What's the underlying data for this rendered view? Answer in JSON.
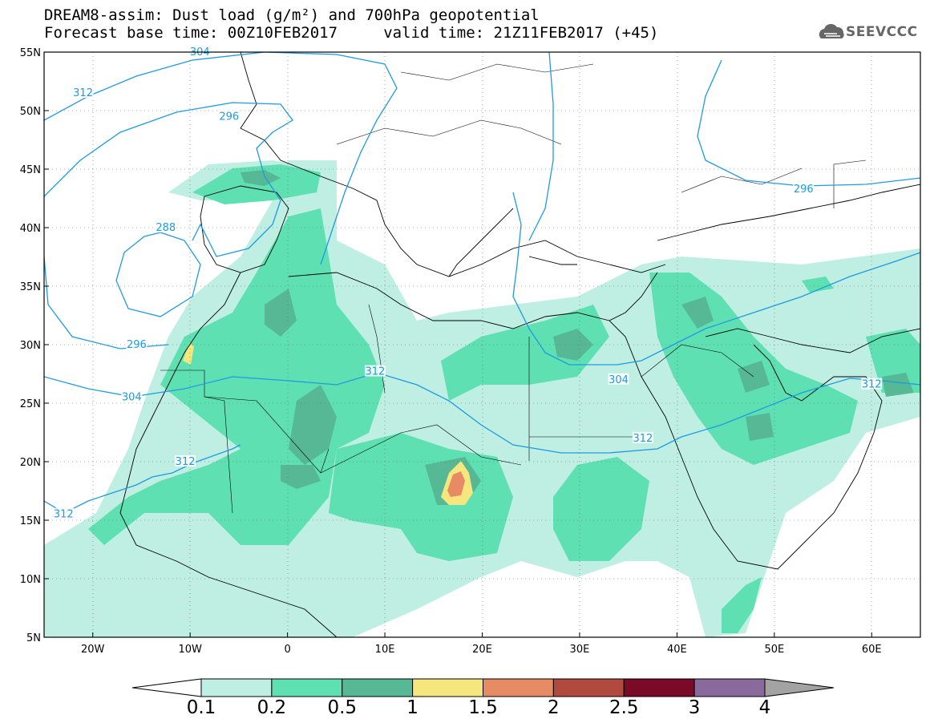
{
  "header": {
    "title_line1": "DREAM8-assim: Dust load (g/m²) and 700hPa geopotential",
    "title_line2": "Forecast base time: 00Z10FEB2017     valid time: 21Z11FEB2017 (+45)",
    "logo_text": "SEEVCCC"
  },
  "axes": {
    "lat_labels": [
      "55N",
      "50N",
      "45N",
      "40N",
      "35N",
      "30N",
      "25N",
      "20N",
      "15N",
      "10N",
      "5N"
    ],
    "lon_labels": [
      "20W",
      "10W",
      "0",
      "10E",
      "20E",
      "30E",
      "40E",
      "50E",
      "60E"
    ],
    "lat_range": [
      5,
      55
    ],
    "lon_range": [
      -25,
      65
    ]
  },
  "contours": {
    "color": "#1e9be0",
    "labels": [
      {
        "text": "312",
        "lon": -21,
        "lat": 51.5
      },
      {
        "text": "304",
        "lon": -9,
        "lat": 55
      },
      {
        "text": "296",
        "lon": -6,
        "lat": 49.5
      },
      {
        "text": "288",
        "lon": -12.5,
        "lat": 40
      },
      {
        "text": "296",
        "lon": -15.5,
        "lat": 30
      },
      {
        "text": "304",
        "lon": -16,
        "lat": 25.5
      },
      {
        "text": "312",
        "lon": 9,
        "lat": 27.7
      },
      {
        "text": "312",
        "lon": -10.5,
        "lat": 20
      },
      {
        "text": "312",
        "lon": -23,
        "lat": 15.5
      },
      {
        "text": "304",
        "lon": 34,
        "lat": 27
      },
      {
        "text": "312",
        "lon": 36.5,
        "lat": 22
      },
      {
        "text": "296",
        "lon": 53,
        "lat": 43.3
      },
      {
        "text": "312",
        "lon": 60,
        "lat": 26.6
      }
    ]
  },
  "colorbar": {
    "labels": [
      "0.1",
      "0.2",
      "0.5",
      "1",
      "1.5",
      "2",
      "2.5",
      "3",
      "4"
    ],
    "colors": [
      "#ffffff",
      "#bfeee3",
      "#5fe0b2",
      "#56b895",
      "#f5e67e",
      "#e68b64",
      "#b04a3f",
      "#7a0a27",
      "#8a6a9c",
      "#a3a3a3"
    ]
  }
}
